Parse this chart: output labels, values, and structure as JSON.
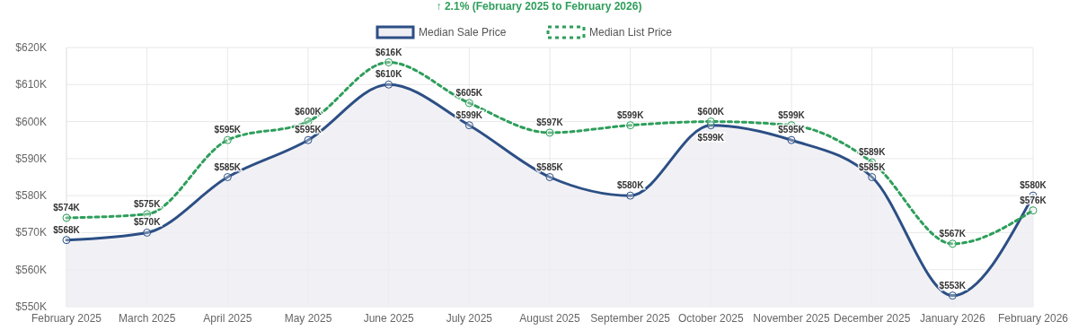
{
  "chart_data": {
    "type": "line",
    "title": "↑ 2.1% (February 2025 to February 2026)",
    "categories": [
      "February 2025",
      "March 2025",
      "April 2025",
      "May 2025",
      "June 2025",
      "July 2025",
      "August 2025",
      "September 2025",
      "October 2025",
      "November 2025",
      "December 2025",
      "January 2026",
      "February 2026"
    ],
    "series": [
      {
        "name": "Median Sale Price",
        "type": "area",
        "color": "#2c4f85",
        "line_style": "solid",
        "values": [
          568,
          570,
          585,
          595,
          610,
          599,
          585,
          580,
          599,
          595,
          585,
          553,
          580
        ],
        "value_labels": [
          "$568K",
          "$570K",
          "$585K",
          "$595K",
          "$610K",
          "$599K",
          "$585K",
          "$580K",
          "$599K",
          "$595K",
          "$585K",
          "$553K",
          "$580K"
        ]
      },
      {
        "name": "Median List Price",
        "color": "#2e9e5b",
        "line_style": "dashed",
        "values": [
          574,
          575,
          595,
          600,
          616,
          605,
          597,
          599,
          600,
          599,
          589,
          567,
          576
        ],
        "value_labels": [
          "$574K",
          "$575K",
          "$595K",
          "$600K",
          "$616K",
          "$605K",
          "$597K",
          "$599K",
          "$600K",
          "$599K",
          "$589K",
          "$567K",
          "$576K"
        ]
      }
    ],
    "ylim": [
      550,
      620
    ],
    "yticks": [
      {
        "value": 550,
        "label": "$550K"
      },
      {
        "value": 560,
        "label": "$560K"
      },
      {
        "value": 570,
        "label": "$570K"
      },
      {
        "value": 580,
        "label": "$580K"
      },
      {
        "value": 590,
        "label": "$590K"
      },
      {
        "value": 600,
        "label": "$600K"
      },
      {
        "value": 610,
        "label": "$610K"
      },
      {
        "value": 620,
        "label": "$620K"
      }
    ],
    "grid": true,
    "legend": "top",
    "marker": "circle"
  }
}
